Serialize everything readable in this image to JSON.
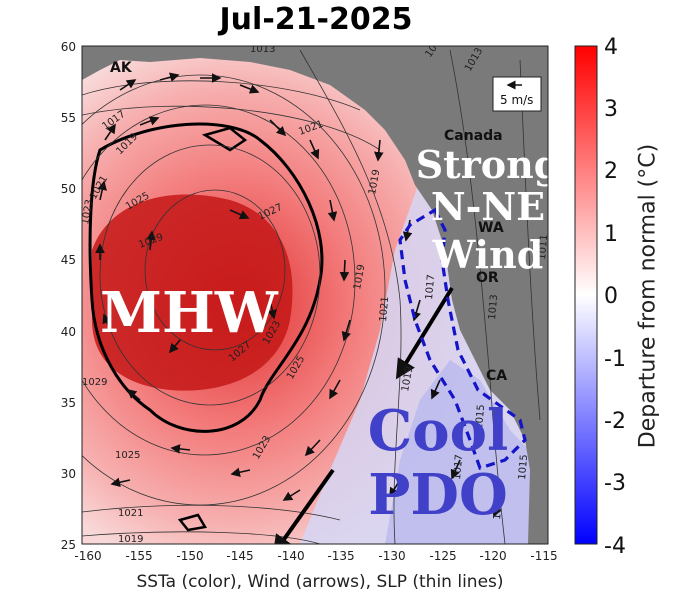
{
  "title": "Jul-21-2025",
  "x_caption": "SSTa (color), Wind (arrows), SLP (thin lines)",
  "colorbar": {
    "label": "Departure from normal (°C)",
    "ticks": [
      "4",
      "3",
      "2",
      "1",
      "0",
      "-1",
      "-2",
      "-3",
      "-4"
    ],
    "range": [
      -4,
      4
    ],
    "colors": {
      "high": "#ff0000",
      "mid": "#ffffff",
      "low": "#0000ff"
    }
  },
  "axes": {
    "x_ticks": [
      "-160",
      "-155",
      "-150",
      "-145",
      "-140",
      "-135",
      "-130",
      "-125",
      "-120",
      "-115"
    ],
    "y_ticks": [
      "60",
      "55",
      "50",
      "45",
      "40",
      "35",
      "30",
      "25"
    ],
    "lon_range": [
      -160,
      -115
    ],
    "lat_range": [
      25,
      60
    ]
  },
  "region_labels": {
    "ak": "AK",
    "canada": "Canada",
    "wa": "WA",
    "or": "OR",
    "ca": "CA"
  },
  "overlay_text": {
    "mhw": "MHW",
    "wind_line1": "Strong",
    "wind_line2": "N-NE",
    "wind_line3": "Wind",
    "cool_line1": "Cool",
    "cool_line2": "PDO"
  },
  "legend": {
    "arrow_scale": "5 m/s"
  },
  "slp_contour_labels": [
    "1013",
    "1015",
    "1013",
    "1017",
    "1019",
    "1021",
    "1021",
    "1023",
    "1025",
    "1027",
    "1029",
    "1019",
    "1019",
    "1021",
    "1023",
    "1027",
    "1025",
    "1023",
    "1017",
    "1011",
    "1013",
    "1015",
    "1017",
    "1015",
    "1017",
    "1019",
    "1029",
    "1025",
    "1021",
    "1019"
  ],
  "colors": {
    "land": "#7a7a7a",
    "ocean_warm": "#f07070",
    "mhw_core": "#c00000",
    "cool_pool": "#b8b8ee",
    "cool_border": "#1414c8"
  }
}
